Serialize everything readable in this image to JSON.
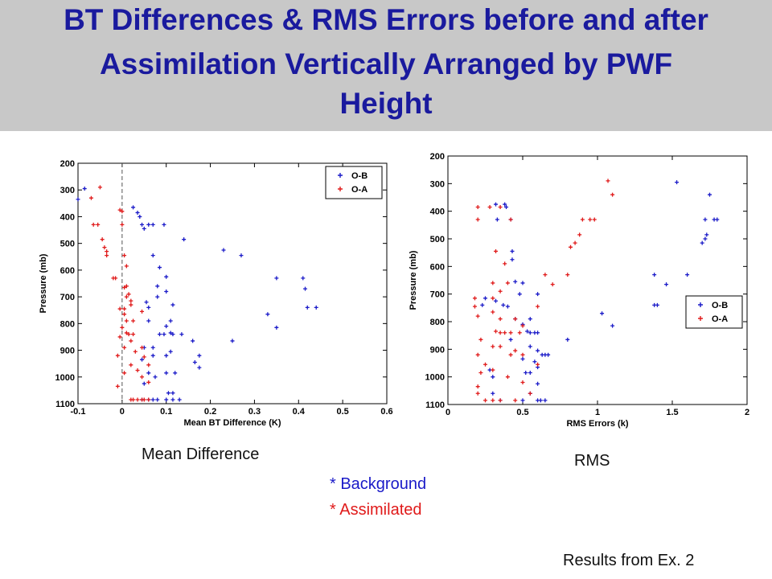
{
  "title": {
    "lines": [
      "BT Differences & RMS Errors before and after",
      "Assimilation Vertically Arranged by PWF",
      "Height"
    ],
    "color": "#1a1a9e",
    "background": "#c8c8c8"
  },
  "captions": {
    "left": "Mean Difference",
    "right": "RMS",
    "background_key": "*  Background",
    "assimilated_key": "*  Assimilated",
    "source": "Results from Ex. 2",
    "background_color": "#1a1ac8",
    "assimilated_color": "#e01a1a"
  },
  "chart_data": [
    {
      "type": "scatter",
      "xlabel": "Mean BT Difference (K)",
      "ylabel": "Pressure (mb)",
      "xlim": [
        -0.1,
        0.6
      ],
      "ylim": [
        200,
        1100
      ],
      "y_inverted": true,
      "xticks": [
        "-0.1",
        "0",
        "0.1",
        "0.2",
        "0.3",
        "0.4",
        "0.5",
        "0.6"
      ],
      "yticks": [
        "200",
        "300",
        "400",
        "500",
        "600",
        "700",
        "800",
        "900",
        "1000",
        "1100"
      ],
      "zero_line": true,
      "legend_position": "top-right",
      "series": [
        {
          "name": "O-B",
          "color": "#1a1ac8",
          "points": [
            [
              -0.085,
              295
            ],
            [
              -0.1,
              335
            ],
            [
              0.025,
              365
            ],
            [
              0.035,
              385
            ],
            [
              0.04,
              400
            ],
            [
              0.06,
              430
            ],
            [
              0.045,
              430
            ],
            [
              0.05,
              445
            ],
            [
              0.07,
              430
            ],
            [
              0.095,
              430
            ],
            [
              0.14,
              485
            ],
            [
              0.07,
              545
            ],
            [
              0.085,
              590
            ],
            [
              0.23,
              525
            ],
            [
              0.27,
              545
            ],
            [
              0.1,
              625
            ],
            [
              0.35,
              630
            ],
            [
              0.41,
              630
            ],
            [
              0.415,
              670
            ],
            [
              0.08,
              660
            ],
            [
              0.08,
              700
            ],
            [
              0.1,
              680
            ],
            [
              0.055,
              720
            ],
            [
              0.06,
              740
            ],
            [
              0.115,
              730
            ],
            [
              0.42,
              740
            ],
            [
              0.44,
              740
            ],
            [
              0.33,
              765
            ],
            [
              0.35,
              815
            ],
            [
              0.06,
              790
            ],
            [
              0.11,
              790
            ],
            [
              0.1,
              810
            ],
            [
              0.11,
              835
            ],
            [
              0.085,
              840
            ],
            [
              0.095,
              840
            ],
            [
              0.115,
              840
            ],
            [
              0.135,
              840
            ],
            [
              0.16,
              865
            ],
            [
              0.25,
              865
            ],
            [
              0.05,
              890
            ],
            [
              0.07,
              890
            ],
            [
              0.11,
              905
            ],
            [
              0.1,
              920
            ],
            [
              0.07,
              920
            ],
            [
              0.175,
              920
            ],
            [
              0.045,
              935
            ],
            [
              0.165,
              945
            ],
            [
              0.175,
              965
            ],
            [
              0.06,
              985
            ],
            [
              0.1,
              985
            ],
            [
              0.12,
              985
            ],
            [
              0.075,
              1000
            ],
            [
              0.05,
              1025
            ],
            [
              0.115,
              1060
            ],
            [
              0.105,
              1060
            ],
            [
              0.06,
              1085
            ],
            [
              0.08,
              1085
            ],
            [
              0.1,
              1085
            ],
            [
              0.115,
              1085
            ],
            [
              0.13,
              1085
            ],
            [
              0.045,
              1085
            ],
            [
              0.07,
              1085
            ]
          ]
        },
        {
          "name": "O-A",
          "color": "#e01a1a",
          "points": [
            [
              -0.05,
              290
            ],
            [
              -0.07,
              330
            ],
            [
              -0.005,
              375
            ],
            [
              0,
              380
            ],
            [
              -0.065,
              430
            ],
            [
              -0.055,
              430
            ],
            [
              0,
              430
            ],
            [
              -0.045,
              485
            ],
            [
              -0.04,
              515
            ],
            [
              -0.035,
              530
            ],
            [
              -0.035,
              545
            ],
            [
              0.005,
              545
            ],
            [
              0.01,
              585
            ],
            [
              -0.02,
              630
            ],
            [
              -0.015,
              630
            ],
            [
              0.01,
              660
            ],
            [
              0.005,
              665
            ],
            [
              0.015,
              690
            ],
            [
              0.01,
              700
            ],
            [
              0.02,
              715
            ],
            [
              0.005,
              745
            ],
            [
              -0.005,
              745
            ],
            [
              0.02,
              730
            ],
            [
              0.045,
              755
            ],
            [
              0.005,
              765
            ],
            [
              0.01,
              790
            ],
            [
              0.025,
              790
            ],
            [
              0.0,
              815
            ],
            [
              0.01,
              835
            ],
            [
              0.015,
              840
            ],
            [
              0.025,
              840
            ],
            [
              -0.005,
              850
            ],
            [
              0.02,
              865
            ],
            [
              0.005,
              890
            ],
            [
              0.045,
              890
            ],
            [
              0.03,
              905
            ],
            [
              0.05,
              925
            ],
            [
              -0.01,
              920
            ],
            [
              0.02,
              955
            ],
            [
              0.06,
              955
            ],
            [
              0.035,
              975
            ],
            [
              0.005,
              985
            ],
            [
              0.045,
              1000
            ],
            [
              0.06,
              1020
            ],
            [
              -0.01,
              1035
            ],
            [
              0.02,
              1085
            ],
            [
              0.025,
              1085
            ],
            [
              0.035,
              1085
            ],
            [
              0.045,
              1085
            ],
            [
              0.05,
              1085
            ],
            [
              0.06,
              1085
            ]
          ]
        }
      ]
    },
    {
      "type": "scatter",
      "xlabel": "RMS Errors (k)",
      "ylabel": "Pressure (mb)",
      "xlim": [
        0,
        2
      ],
      "ylim": [
        200,
        1100
      ],
      "y_inverted": true,
      "xticks": [
        "0",
        "0.5",
        "1",
        "1.5",
        "2"
      ],
      "yticks": [
        "200",
        "300",
        "400",
        "500",
        "600",
        "700",
        "800",
        "900",
        "1000",
        "1100"
      ],
      "zero_line": false,
      "legend_position": "middle-right",
      "series": [
        {
          "name": "O-B",
          "color": "#1a1ac8",
          "points": [
            [
              1.53,
              295
            ],
            [
              1.75,
              340
            ],
            [
              0.32,
              375
            ],
            [
              0.38,
              375
            ],
            [
              0.39,
              385
            ],
            [
              1.72,
              430
            ],
            [
              1.78,
              430
            ],
            [
              1.8,
              430
            ],
            [
              0.33,
              430
            ],
            [
              0.42,
              430
            ],
            [
              1.73,
              485
            ],
            [
              1.72,
              500
            ],
            [
              1.7,
              515
            ],
            [
              0.43,
              545
            ],
            [
              0.43,
              575
            ],
            [
              1.6,
              630
            ],
            [
              1.38,
              630
            ],
            [
              1.46,
              665
            ],
            [
              0.45,
              655
            ],
            [
              0.5,
              660
            ],
            [
              0.48,
              700
            ],
            [
              0.6,
              700
            ],
            [
              0.25,
              715
            ],
            [
              0.32,
              725
            ],
            [
              0.23,
              740
            ],
            [
              0.37,
              740
            ],
            [
              0.4,
              745
            ],
            [
              1.38,
              740
            ],
            [
              1.4,
              740
            ],
            [
              1.03,
              770
            ],
            [
              1.1,
              815
            ],
            [
              0.45,
              790
            ],
            [
              0.55,
              790
            ],
            [
              0.5,
              810
            ],
            [
              0.53,
              835
            ],
            [
              0.55,
              840
            ],
            [
              0.58,
              840
            ],
            [
              0.6,
              840
            ],
            [
              0.8,
              865
            ],
            [
              0.42,
              865
            ],
            [
              0.55,
              890
            ],
            [
              0.6,
              905
            ],
            [
              0.63,
              920
            ],
            [
              0.65,
              920
            ],
            [
              0.67,
              920
            ],
            [
              0.5,
              935
            ],
            [
              0.58,
              945
            ],
            [
              0.6,
              965
            ],
            [
              0.28,
              975
            ],
            [
              0.3,
              1000
            ],
            [
              0.52,
              985
            ],
            [
              0.55,
              985
            ],
            [
              0.6,
              1025
            ],
            [
              0.3,
              1060
            ],
            [
              0.55,
              1060
            ],
            [
              0.65,
              1085
            ],
            [
              0.35,
              1085
            ],
            [
              0.5,
              1085
            ],
            [
              0.6,
              1085
            ],
            [
              0.62,
              1085
            ]
          ]
        },
        {
          "name": "O-A",
          "color": "#e01a1a",
          "points": [
            [
              1.07,
              290
            ],
            [
              1.1,
              340
            ],
            [
              0.2,
              385
            ],
            [
              0.28,
              385
            ],
            [
              0.35,
              385
            ],
            [
              0.2,
              430
            ],
            [
              0.42,
              430
            ],
            [
              0.9,
              430
            ],
            [
              0.95,
              430
            ],
            [
              0.98,
              430
            ],
            [
              0.88,
              485
            ],
            [
              0.85,
              515
            ],
            [
              0.82,
              530
            ],
            [
              0.32,
              545
            ],
            [
              0.38,
              590
            ],
            [
              0.65,
              630
            ],
            [
              0.8,
              630
            ],
            [
              0.3,
              660
            ],
            [
              0.4,
              660
            ],
            [
              0.7,
              665
            ],
            [
              0.35,
              690
            ],
            [
              0.3,
              715
            ],
            [
              0.18,
              715
            ],
            [
              0.6,
              745
            ],
            [
              0.18,
              745
            ],
            [
              0.2,
              780
            ],
            [
              0.3,
              765
            ],
            [
              0.35,
              790
            ],
            [
              0.45,
              790
            ],
            [
              0.5,
              815
            ],
            [
              0.32,
              835
            ],
            [
              0.35,
              840
            ],
            [
              0.38,
              840
            ],
            [
              0.42,
              840
            ],
            [
              0.48,
              840
            ],
            [
              0.22,
              865
            ],
            [
              0.3,
              890
            ],
            [
              0.35,
              890
            ],
            [
              0.45,
              905
            ],
            [
              0.2,
              920
            ],
            [
              0.42,
              920
            ],
            [
              0.5,
              920
            ],
            [
              0.25,
              955
            ],
            [
              0.6,
              955
            ],
            [
              0.3,
              975
            ],
            [
              0.22,
              985
            ],
            [
              0.4,
              1000
            ],
            [
              0.5,
              1020
            ],
            [
              0.2,
              1035
            ],
            [
              0.3,
              1085
            ],
            [
              0.25,
              1085
            ],
            [
              0.35,
              1085
            ],
            [
              0.45,
              1085
            ],
            [
              0.2,
              1060
            ],
            [
              0.55,
              1060
            ]
          ]
        }
      ]
    }
  ]
}
